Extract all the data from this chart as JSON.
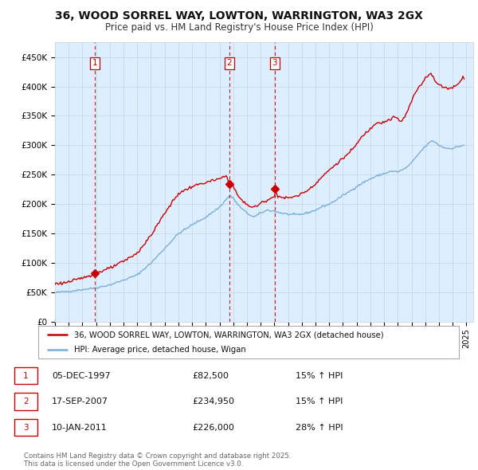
{
  "title": "36, WOOD SORREL WAY, LOWTON, WARRINGTON, WA3 2GX",
  "subtitle": "Price paid vs. HM Land Registry's House Price Index (HPI)",
  "xlim_start": 1995.0,
  "xlim_end": 2025.5,
  "ylim_min": 0,
  "ylim_max": 475000,
  "yticks": [
    0,
    50000,
    100000,
    150000,
    200000,
    250000,
    300000,
    350000,
    400000,
    450000
  ],
  "ytick_labels": [
    "£0",
    "£50K",
    "£100K",
    "£150K",
    "£200K",
    "£250K",
    "£300K",
    "£350K",
    "£400K",
    "£450K"
  ],
  "xticks": [
    1995,
    1996,
    1997,
    1998,
    1999,
    2000,
    2001,
    2002,
    2003,
    2004,
    2005,
    2006,
    2007,
    2008,
    2009,
    2010,
    2011,
    2012,
    2013,
    2014,
    2015,
    2016,
    2017,
    2018,
    2019,
    2020,
    2021,
    2022,
    2023,
    2024,
    2025
  ],
  "sale_color": "#cc0000",
  "hpi_color": "#7aaed6",
  "vline_color": "#cc0000",
  "grid_color": "#c8d8e8",
  "bg_color": "#ddeeff",
  "plot_bg": "#ddeeff",
  "legend_label_sale": "36, WOOD SORREL WAY, LOWTON, WARRINGTON, WA3 2GX (detached house)",
  "legend_label_hpi": "HPI: Average price, detached house, Wigan",
  "transactions": [
    {
      "label": "1",
      "date": 1997.92,
      "price": 82500
    },
    {
      "label": "2",
      "date": 2007.71,
      "price": 234950
    },
    {
      "label": "3",
      "date": 2011.03,
      "price": 226000
    }
  ],
  "table_rows": [
    {
      "num": "1",
      "date": "05-DEC-1997",
      "price": "£82,500",
      "change": "15% ↑ HPI"
    },
    {
      "num": "2",
      "date": "17-SEP-2007",
      "price": "£234,950",
      "change": "15% ↑ HPI"
    },
    {
      "num": "3",
      "date": "10-JAN-2011",
      "price": "£226,000",
      "change": "28% ↑ HPI"
    }
  ],
  "footer": "Contains HM Land Registry data © Crown copyright and database right 2025.\nThis data is licensed under the Open Government Licence v3.0."
}
